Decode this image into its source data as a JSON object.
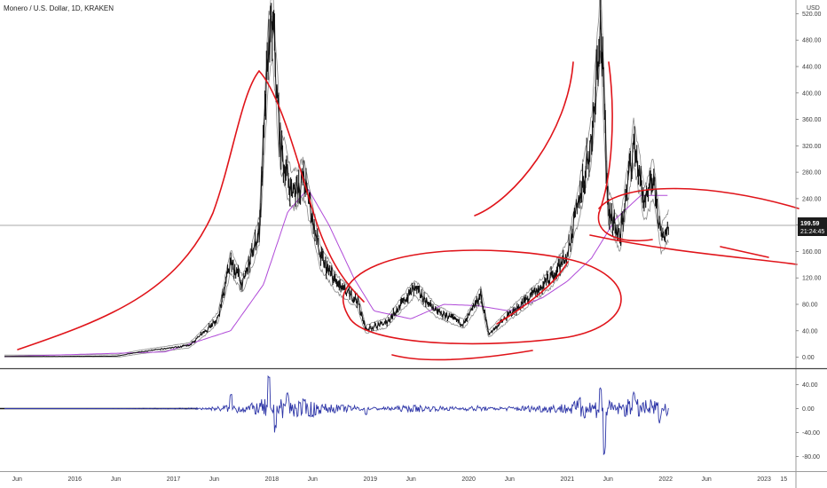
{
  "header": {
    "symbol_line": "Monero / U.S. Dollar, 1D, KRAKEN",
    "currency": "USD"
  },
  "price_badge": {
    "price": "199.59",
    "countdown": "21:24:45"
  },
  "colors": {
    "candles": "#111111",
    "bands": "#8a8a8a",
    "moving_average": "#b04ad8",
    "annotations": "#e0141a",
    "oscillator": "#2f37a8",
    "badge": "#1c1c1c",
    "grid": "#c8c8c8"
  },
  "chart_data": [
    {
      "type": "line",
      "panel": "price",
      "series": [],
      "x_axis": {
        "tick_labels": [
          "Jun",
          "2016",
          "Jun",
          "2017",
          "Jun",
          "2018",
          "Jun",
          "2019",
          "Jun",
          "2020",
          "Jun",
          "2021",
          "Jun",
          "2022",
          "Jun",
          "2023",
          "15"
        ]
      },
      "y_axis": {
        "position": "right",
        "tick_labels": [
          "0.00",
          "40.00",
          "80.00",
          "120.00",
          "160.00",
          "200.00",
          "240.00",
          "280.00",
          "320.00",
          "360.00",
          "400.00",
          "440.00",
          "480.00",
          "520.00"
        ],
        "ylim": [
          -10,
          530
        ]
      },
      "x_domain": [
        "2015-04-15",
        "2023-04-16"
      ],
      "last_value": 199.59,
      "price_path": [
        [
          "2015-04-15",
          1
        ],
        [
          "2016-06-01",
          1.5
        ],
        [
          "2016-09-01",
          8
        ],
        [
          "2016-12-20",
          14
        ],
        [
          "2017-03-01",
          18
        ],
        [
          "2017-05-01",
          40
        ],
        [
          "2017-06-15",
          60
        ],
        [
          "2017-08-01",
          145
        ],
        [
          "2017-09-15",
          110
        ],
        [
          "2017-11-15",
          190
        ],
        [
          "2017-12-20",
          470
        ],
        [
          "2018-01-05",
          500
        ],
        [
          "2018-02-01",
          320
        ],
        [
          "2018-03-15",
          250
        ],
        [
          "2018-05-01",
          270
        ],
        [
          "2018-07-01",
          150
        ],
        [
          "2018-09-01",
          110
        ],
        [
          "2018-11-15",
          85
        ],
        [
          "2018-12-15",
          42
        ],
        [
          "2019-03-01",
          52
        ],
        [
          "2019-06-15",
          105
        ],
        [
          "2019-09-01",
          70
        ],
        [
          "2019-12-15",
          50
        ],
        [
          "2020-02-15",
          95
        ],
        [
          "2020-03-15",
          35
        ],
        [
          "2020-06-01",
          65
        ],
        [
          "2020-08-15",
          90
        ],
        [
          "2020-11-01",
          120
        ],
        [
          "2021-01-01",
          155
        ],
        [
          "2021-02-15",
          240
        ],
        [
          "2021-04-01",
          330
        ],
        [
          "2021-05-05",
          515
        ],
        [
          "2021-06-01",
          230
        ],
        [
          "2021-07-15",
          180
        ],
        [
          "2021-09-05",
          325
        ],
        [
          "2021-10-15",
          230
        ],
        [
          "2021-11-15",
          270
        ],
        [
          "2021-12-15",
          180
        ],
        [
          "2022-01-12",
          199.59
        ]
      ],
      "moving_average_path": [
        [
          "2015-04-15",
          1
        ],
        [
          "2016-12-01",
          8
        ],
        [
          "2017-08-01",
          40
        ],
        [
          "2017-12-01",
          110
        ],
        [
          "2018-03-01",
          220
        ],
        [
          "2018-05-15",
          255
        ],
        [
          "2018-08-01",
          200
        ],
        [
          "2018-11-01",
          120
        ],
        [
          "2019-01-15",
          70
        ],
        [
          "2019-06-01",
          58
        ],
        [
          "2019-10-01",
          80
        ],
        [
          "2020-02-01",
          78
        ],
        [
          "2020-06-01",
          70
        ],
        [
          "2020-10-01",
          90
        ],
        [
          "2021-01-01",
          115
        ],
        [
          "2021-04-01",
          150
        ],
        [
          "2021-07-01",
          210
        ],
        [
          "2021-10-01",
          245
        ],
        [
          "2022-01-12",
          245
        ]
      ]
    },
    {
      "type": "line",
      "panel": "oscillator",
      "y_axis": {
        "position": "right",
        "tick_labels": [
          "40.00",
          "0.00",
          "-40.00",
          "-80.00"
        ],
        "ylim": [
          -100,
          60
        ]
      },
      "series": [],
      "spikes": [
        [
          "2017-08-01",
          25
        ],
        [
          "2017-12-20",
          55
        ],
        [
          "2018-01-15",
          -40
        ],
        [
          "2018-03-01",
          30
        ],
        [
          "2018-06-01",
          -15
        ],
        [
          "2018-12-15",
          -12
        ],
        [
          "2021-02-15",
          20
        ],
        [
          "2021-05-05",
          40
        ],
        [
          "2021-05-20",
          -85
        ],
        [
          "2021-09-05",
          30
        ],
        [
          "2021-12-10",
          -25
        ]
      ]
    }
  ]
}
